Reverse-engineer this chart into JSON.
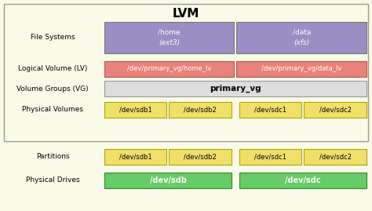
{
  "title": "LVM",
  "bg_outer": "#fafae8",
  "lvm_box_color": "#fafae8",
  "lvm_box_edge": "#999999",
  "file_systems": {
    "label": "File Systems",
    "boxes": [
      {
        "text_line1": "/home",
        "text_line2": "(ext3)",
        "color": "#9b8ec4",
        "text_color": "#ffffff"
      },
      {
        "text_line1": "/data",
        "text_line2": "(xfs)",
        "color": "#9b8ec4",
        "text_color": "#ffffff"
      }
    ]
  },
  "logical_volume": {
    "label": "Logical Volume (LV)",
    "boxes": [
      {
        "text": "/dev/primary_vg/home_lv",
        "color": "#e8827a",
        "text_color": "#ffffff"
      },
      {
        "text": "/dev/primary_vg/data_lv",
        "color": "#e8827a",
        "text_color": "#ffffff"
      }
    ]
  },
  "volume_groups": {
    "label": "Volume Groups (VG)",
    "box": {
      "text": "primary_vg",
      "color": "#dddddd",
      "text_color": "#000000"
    }
  },
  "physical_volumes": {
    "label": "Physical Volumes",
    "boxes": [
      {
        "text": "/dev/sdb1",
        "color": "#f0e06a",
        "text_color": "#000000"
      },
      {
        "text": "/dev/sdb2",
        "color": "#f0e06a",
        "text_color": "#000000"
      },
      {
        "text": "/dev/sdc1",
        "color": "#f0e06a",
        "text_color": "#000000"
      },
      {
        "text": "/dev/sdc2",
        "color": "#f0e06a",
        "text_color": "#000000"
      }
    ]
  },
  "partitions": {
    "label": "Partitions",
    "boxes": [
      {
        "text": "/dev/sdb1",
        "color": "#f0e06a",
        "text_color": "#000000"
      },
      {
        "text": "/dev/sdb2",
        "color": "#f0e06a",
        "text_color": "#000000"
      },
      {
        "text": "/dev/sdc1",
        "color": "#f0e06a",
        "text_color": "#000000"
      },
      {
        "text": "/dev/sdc2",
        "color": "#f0e06a",
        "text_color": "#000000"
      }
    ]
  },
  "physical_drives": {
    "label": "Physical Drives",
    "boxes": [
      {
        "text": "/dev/sdb",
        "color": "#66cc66",
        "text_color": "#ffffff"
      },
      {
        "text": "/dev/sdc",
        "color": "#66cc66",
        "text_color": "#ffffff"
      }
    ]
  }
}
